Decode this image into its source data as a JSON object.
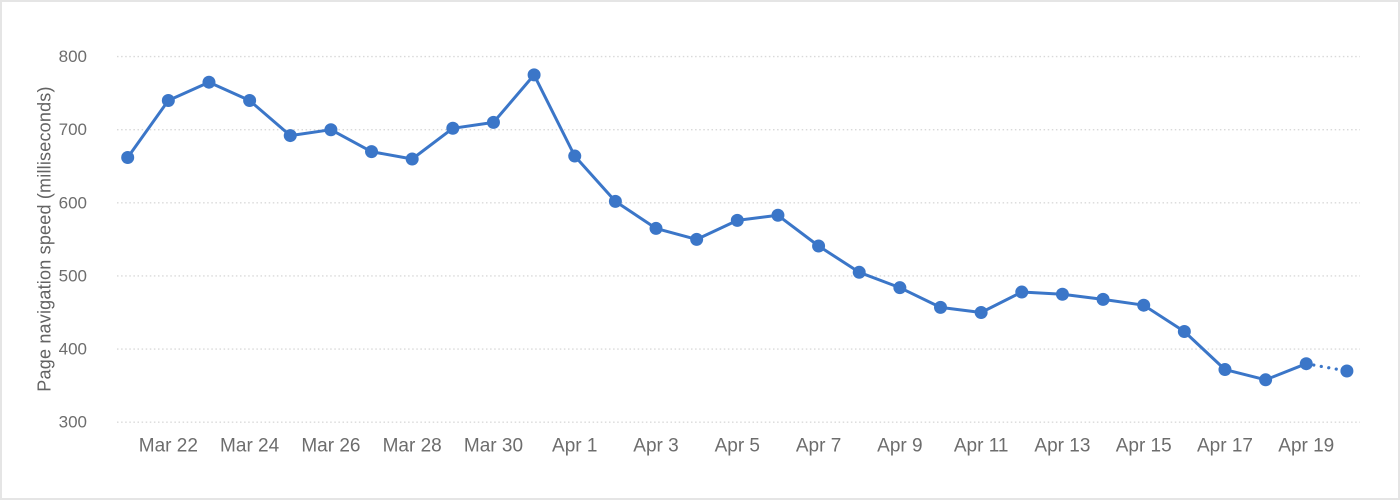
{
  "chart_data": {
    "type": "line",
    "title": "",
    "xlabel": "",
    "ylabel": "Page navigation speed (milliseconds)",
    "ylim": [
      300,
      800
    ],
    "yticks": [
      800,
      700,
      600,
      500,
      400,
      300
    ],
    "grid": "horizontal-dotted",
    "legend_position": "none",
    "x": [
      "Mar 21",
      "Mar 22",
      "Mar 23",
      "Mar 24",
      "Mar 25",
      "Mar 26",
      "Mar 27",
      "Mar 28",
      "Mar 29",
      "Mar 30",
      "Mar 31",
      "Apr 1",
      "Apr 2",
      "Apr 3",
      "Apr 4",
      "Apr 5",
      "Apr 6",
      "Apr 7",
      "Apr 8",
      "Apr 9",
      "Apr 10",
      "Apr 11",
      "Apr 12",
      "Apr 13",
      "Apr 14",
      "Apr 15",
      "Apr 16",
      "Apr 17",
      "Apr 18",
      "Apr 19",
      "Apr 20"
    ],
    "x_tick_labels": [
      "Mar 22",
      "Mar 24",
      "Mar 26",
      "Mar 28",
      "Mar 30",
      "Apr 1",
      "Apr 3",
      "Apr 5",
      "Apr 7",
      "Apr 9",
      "Apr 11",
      "Apr 13",
      "Apr 15",
      "Apr 17",
      "Apr 19"
    ],
    "series": [
      {
        "name": "Page navigation speed",
        "marker": "circle",
        "last_segment_style": "dotted",
        "values": [
          662,
          740,
          765,
          740,
          692,
          700,
          670,
          660,
          702,
          710,
          775,
          664,
          602,
          565,
          550,
          576,
          583,
          541,
          505,
          484,
          457,
          450,
          478,
          475,
          468,
          460,
          424,
          372,
          358,
          380,
          370
        ]
      }
    ],
    "colors": {
      "line": "#3b76c8",
      "grid": "#d9d9d9",
      "tick_text": "#6d6d6d",
      "axis_title_text": "#636363",
      "background": "#ffffff",
      "border": "#e5e5e5"
    }
  }
}
